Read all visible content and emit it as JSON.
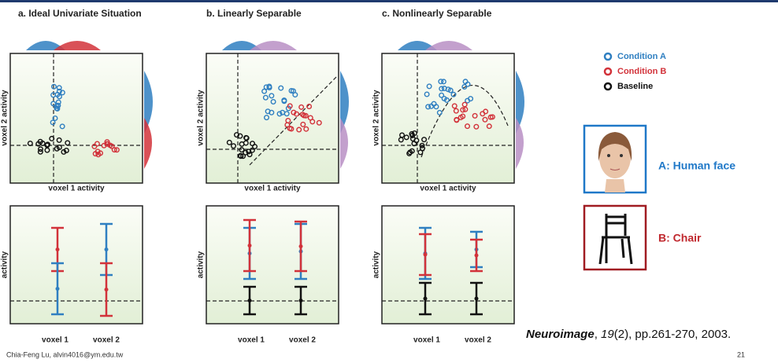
{
  "panels": [
    {
      "title": "a. Ideal Univariate Situation",
      "scatter": {
        "x_label": "voxel 1 activity",
        "y_label": "voxel 2 activity"
      },
      "bars": {
        "y_label": "activity",
        "x_labels": [
          "voxel 1",
          "voxel 2"
        ]
      }
    },
    {
      "title": "b. Linearly Separable",
      "scatter": {
        "x_label": "voxel 1 activity",
        "y_label": "voxel 2 activity"
      },
      "bars": {
        "y_label": "activity",
        "x_labels": [
          "voxel 1",
          "voxel 2"
        ]
      }
    },
    {
      "title": "c. Nonlinearly Separable",
      "scatter": {
        "x_label": "voxel 1 activity",
        "y_label": "voxel 2 activity"
      },
      "bars": {
        "y_label": "activity",
        "x_labels": [
          "voxel 1",
          "voxel 2"
        ]
      }
    }
  ],
  "legend": [
    "Condition A",
    "Condition B",
    "Baseline"
  ],
  "examples": [
    "A: Human face",
    "B: Chair"
  ],
  "citation": [
    "Neuroimage",
    ", ",
    "19",
    "(2), pp.261-270, 2003."
  ],
  "footer": {
    "author": "Chia-Feng Lu, alvin4016@ym.edu.tw",
    "page": "21"
  }
}
